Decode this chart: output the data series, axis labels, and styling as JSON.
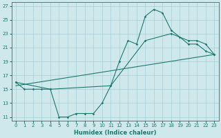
{
  "line1_x": [
    0,
    1,
    2,
    3,
    4,
    5,
    6,
    7,
    8,
    9,
    10,
    11,
    12,
    13,
    14,
    15,
    16,
    17,
    18,
    19,
    20,
    21,
    22,
    23
  ],
  "line1_y": [
    16,
    15,
    15,
    15,
    15,
    11,
    11,
    11.5,
    11.5,
    11.5,
    13,
    15.5,
    19,
    22,
    21.5,
    25.5,
    26.5,
    26,
    23.5,
    22.5,
    21.5,
    21.5,
    20.5,
    20
  ],
  "line2_x": [
    0,
    4,
    11,
    15,
    18,
    20,
    21,
    22,
    23
  ],
  "line2_y": [
    16,
    15,
    15.5,
    22,
    23,
    22,
    22,
    21.5,
    20
  ],
  "line3_x": [
    0,
    23
  ],
  "line3_y": [
    15.5,
    20
  ],
  "color": "#1a7a6e",
  "bg_color": "#cfe8ec",
  "grid_color": "#a8cdd5",
  "xlabel": "Humidex (Indice chaleur)",
  "xlim": [
    -0.5,
    23.5
  ],
  "ylim": [
    10.5,
    27.5
  ],
  "yticks": [
    11,
    13,
    15,
    17,
    19,
    21,
    23,
    25,
    27
  ],
  "xticks": [
    0,
    1,
    2,
    3,
    4,
    5,
    6,
    7,
    8,
    9,
    10,
    11,
    12,
    13,
    14,
    15,
    16,
    17,
    18,
    19,
    20,
    21,
    22,
    23
  ]
}
